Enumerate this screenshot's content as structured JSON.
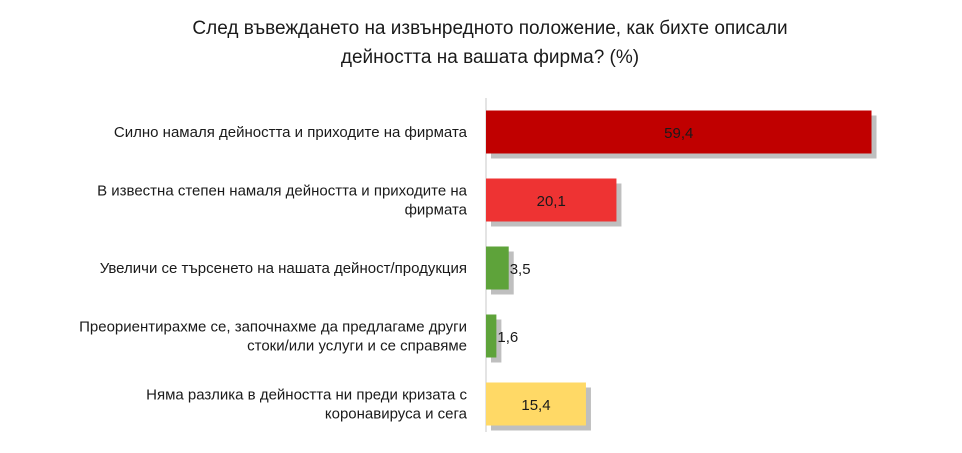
{
  "chart_data": {
    "type": "bar",
    "orientation": "horizontal",
    "title": "След въвеждането на извънредното положение, как бихте описали дейността на вашата фирма? (%)",
    "title_lines": [
      "След въвеждането на извънредното положение, как бихте описали",
      "дейността на вашата фирма? (%)"
    ],
    "categories": [
      [
        "Силно намаля дейността и приходите на фирмата"
      ],
      [
        "В известна степен намаля дейността и приходите на",
        "фирмата"
      ],
      [
        "Увеличи се търсенето на нашата дейност/продукция"
      ],
      [
        "Преориентирахме се, започнахме да предлагаме други",
        "стоки/или услуги и се справяме"
      ],
      [
        "Няма разлика в дейността ни преди кризата с",
        "коронавируса и сега"
      ]
    ],
    "values": [
      59.4,
      20.1,
      3.5,
      1.6,
      15.4
    ],
    "value_labels": [
      "59,4",
      "20,1",
      "3,5",
      "1,6",
      "15,4"
    ],
    "colors": [
      "#c00000",
      "#ee3333",
      "#5ea33a",
      "#5ea33a",
      "#ffd966"
    ],
    "xlim": [
      0,
      70
    ],
    "grid": false,
    "legend": "none"
  }
}
